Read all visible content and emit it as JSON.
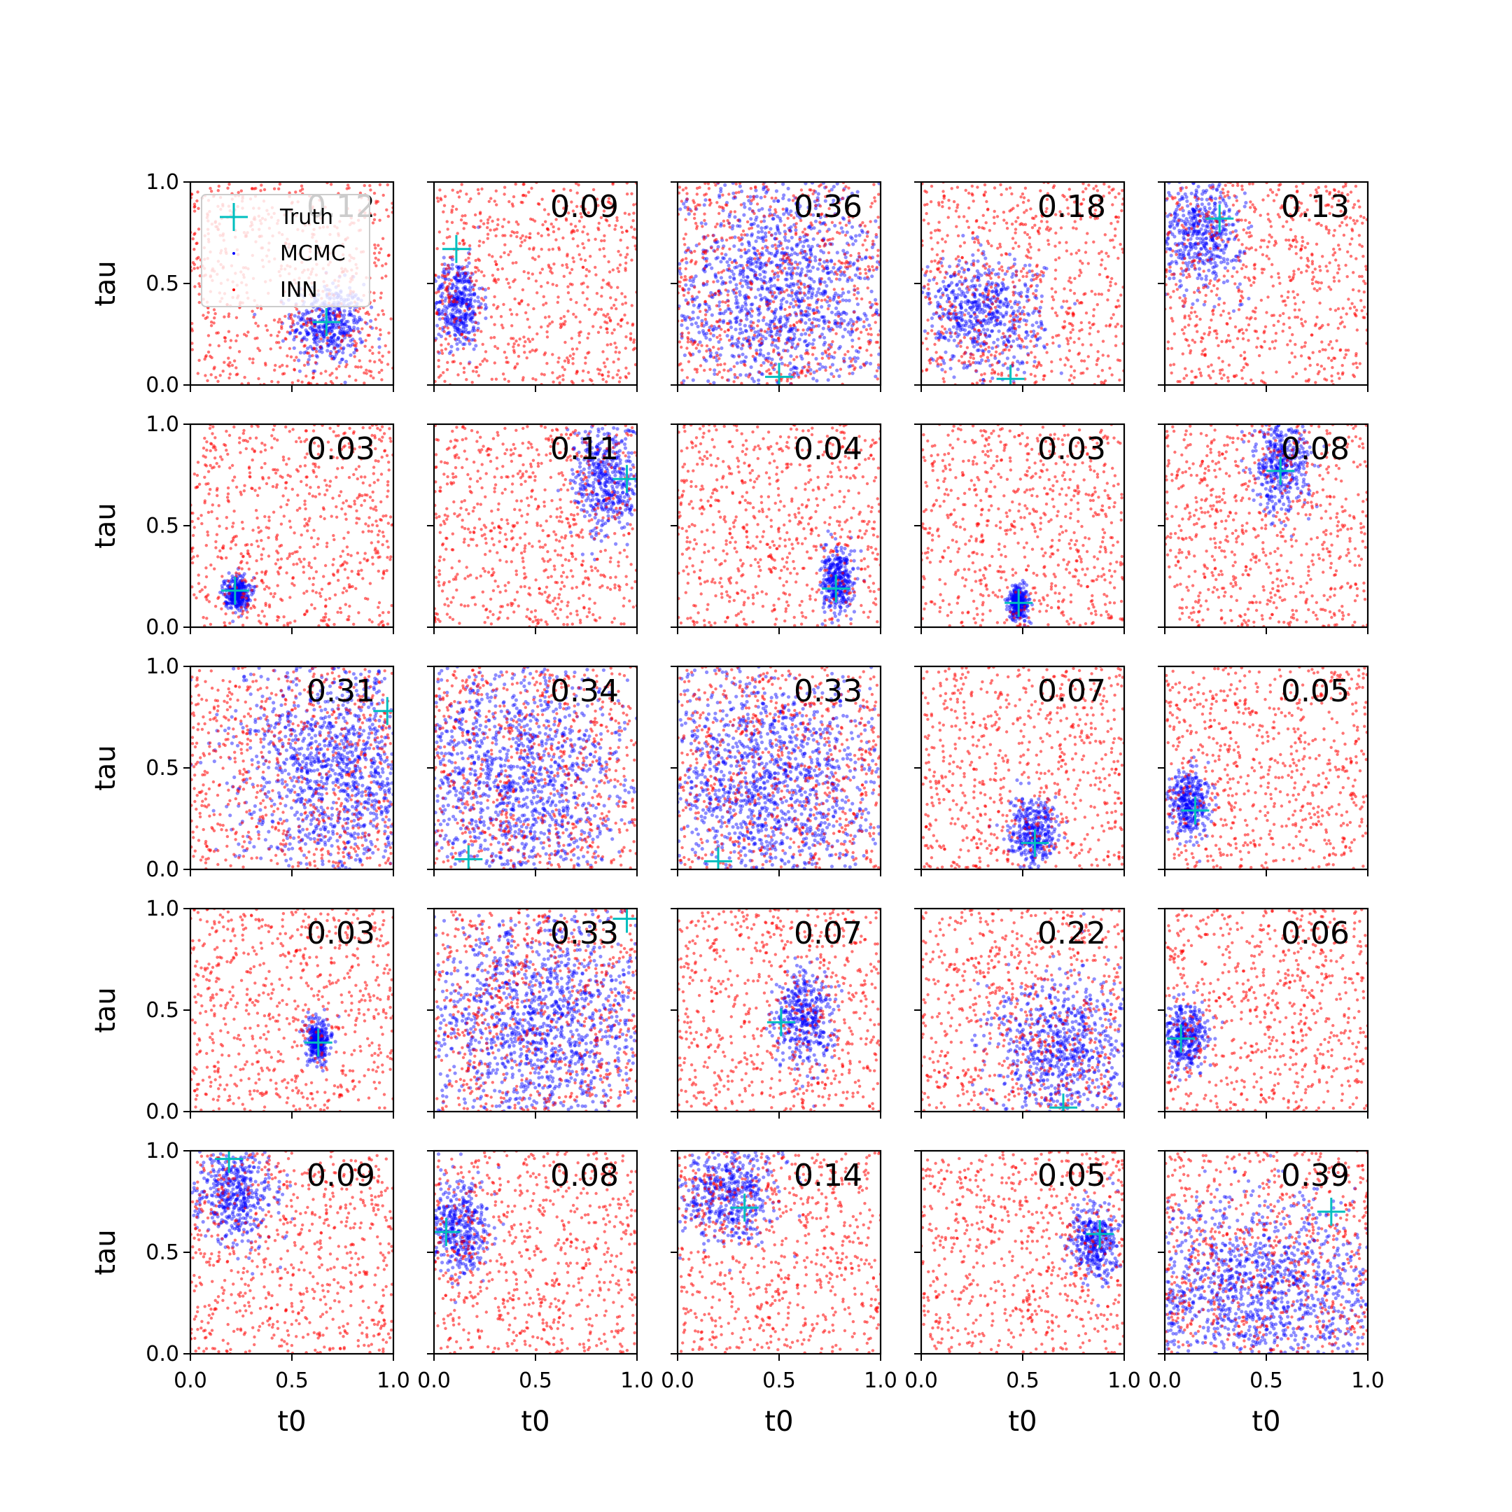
{
  "colors": {
    "truth": "#00bfbf",
    "mcmc": "#0000ff",
    "inn": "#ff0000",
    "axes": "#000000"
  },
  "legend": {
    "entries": [
      {
        "label": "Truth",
        "marker": "plus",
        "color": "#00bfbf"
      },
      {
        "label": "MCMC",
        "marker": "dot",
        "color": "#0000ff"
      },
      {
        "label": "INN",
        "marker": "dot",
        "color": "#ff0000"
      }
    ],
    "placement": "upper-left of first panel"
  },
  "chart_data": {
    "type": "scatter",
    "layout": "5x5 grid",
    "xlabel": "t0",
    "ylabel": "tau",
    "xlim": [
      0.0,
      1.0
    ],
    "ylim": [
      0.0,
      1.0
    ],
    "xticks": [
      "0.0",
      "0.5",
      "1.0"
    ],
    "yticks": [
      "0.0",
      "0.5",
      "1.0"
    ],
    "grid": false,
    "series_names": [
      "Truth",
      "MCMC",
      "INN"
    ],
    "panels": [
      {
        "row": 0,
        "col": 0,
        "value": "0.12",
        "truth": [
          0.67,
          0.31
        ],
        "mcmc": {
          "center": [
            0.68,
            0.3
          ],
          "spread": [
            0.09,
            0.1
          ]
        }
      },
      {
        "row": 0,
        "col": 1,
        "value": "0.09",
        "truth": [
          0.11,
          0.67
        ],
        "mcmc": {
          "center": [
            0.12,
            0.4
          ],
          "spread": [
            0.06,
            0.11
          ]
        }
      },
      {
        "row": 0,
        "col": 2,
        "value": "0.36",
        "truth": [
          0.5,
          0.04
        ],
        "mcmc": {
          "center": [
            0.5,
            0.45
          ],
          "spread": [
            0.3,
            0.3
          ]
        }
      },
      {
        "row": 0,
        "col": 3,
        "value": "0.18",
        "truth": [
          0.44,
          0.03
        ],
        "mcmc": {
          "center": [
            0.3,
            0.35
          ],
          "spread": [
            0.15,
            0.14
          ]
        }
      },
      {
        "row": 0,
        "col": 4,
        "value": "0.13",
        "truth": [
          0.27,
          0.82
        ],
        "mcmc": {
          "center": [
            0.18,
            0.75
          ],
          "spread": [
            0.1,
            0.13
          ]
        }
      },
      {
        "row": 1,
        "col": 0,
        "value": "0.03",
        "truth": [
          0.22,
          0.18
        ],
        "mcmc": {
          "center": [
            0.23,
            0.17
          ],
          "spread": [
            0.03,
            0.04
          ]
        }
      },
      {
        "row": 1,
        "col": 1,
        "value": "0.11",
        "truth": [
          0.95,
          0.73
        ],
        "mcmc": {
          "center": [
            0.85,
            0.72
          ],
          "spread": [
            0.08,
            0.14
          ]
        }
      },
      {
        "row": 1,
        "col": 2,
        "value": "0.04",
        "truth": [
          0.78,
          0.19
        ],
        "mcmc": {
          "center": [
            0.79,
            0.22
          ],
          "spread": [
            0.04,
            0.08
          ]
        }
      },
      {
        "row": 1,
        "col": 3,
        "value": "0.03",
        "truth": [
          0.48,
          0.12
        ],
        "mcmc": {
          "center": [
            0.48,
            0.12
          ],
          "spread": [
            0.025,
            0.04
          ]
        }
      },
      {
        "row": 1,
        "col": 4,
        "value": "0.08",
        "truth": [
          0.57,
          0.77
        ],
        "mcmc": {
          "center": [
            0.57,
            0.8
          ],
          "spread": [
            0.07,
            0.12
          ]
        }
      },
      {
        "row": 2,
        "col": 0,
        "value": "0.31",
        "truth": [
          0.97,
          0.78
        ],
        "mcmc": {
          "center": [
            0.75,
            0.5
          ],
          "spread": [
            0.25,
            0.3
          ]
        }
      },
      {
        "row": 2,
        "col": 1,
        "value": "0.34",
        "truth": [
          0.17,
          0.05
        ],
        "mcmc": {
          "center": [
            0.4,
            0.45
          ],
          "spread": [
            0.3,
            0.3
          ]
        }
      },
      {
        "row": 2,
        "col": 2,
        "value": "0.33",
        "truth": [
          0.2,
          0.04
        ],
        "mcmc": {
          "center": [
            0.45,
            0.4
          ],
          "spread": [
            0.3,
            0.3
          ]
        }
      },
      {
        "row": 2,
        "col": 3,
        "value": "0.07",
        "truth": [
          0.56,
          0.13
        ],
        "mcmc": {
          "center": [
            0.55,
            0.18
          ],
          "spread": [
            0.06,
            0.08
          ]
        }
      },
      {
        "row": 2,
        "col": 4,
        "value": "0.05",
        "truth": [
          0.15,
          0.29
        ],
        "mcmc": {
          "center": [
            0.12,
            0.33
          ],
          "spread": [
            0.05,
            0.08
          ]
        }
      },
      {
        "row": 3,
        "col": 0,
        "value": "0.03",
        "truth": [
          0.63,
          0.34
        ],
        "mcmc": {
          "center": [
            0.63,
            0.35
          ],
          "spread": [
            0.03,
            0.05
          ]
        }
      },
      {
        "row": 3,
        "col": 1,
        "value": "0.33",
        "truth": [
          0.95,
          0.95
        ],
        "mcmc": {
          "center": [
            0.5,
            0.45
          ],
          "spread": [
            0.3,
            0.3
          ]
        }
      },
      {
        "row": 3,
        "col": 2,
        "value": "0.07",
        "truth": [
          0.51,
          0.44
        ],
        "mcmc": {
          "center": [
            0.62,
            0.45
          ],
          "spread": [
            0.07,
            0.12
          ]
        }
      },
      {
        "row": 3,
        "col": 3,
        "value": "0.22",
        "truth": [
          0.7,
          0.02
        ],
        "mcmc": {
          "center": [
            0.7,
            0.3
          ],
          "spread": [
            0.18,
            0.18
          ]
        }
      },
      {
        "row": 3,
        "col": 4,
        "value": "0.06",
        "truth": [
          0.08,
          0.36
        ],
        "mcmc": {
          "center": [
            0.1,
            0.37
          ],
          "spread": [
            0.05,
            0.08
          ]
        }
      },
      {
        "row": 4,
        "col": 0,
        "value": "0.09",
        "truth": [
          0.19,
          0.96
        ],
        "mcmc": {
          "center": [
            0.22,
            0.8
          ],
          "spread": [
            0.1,
            0.13
          ]
        }
      },
      {
        "row": 4,
        "col": 1,
        "value": "0.08",
        "truth": [
          0.06,
          0.6
        ],
        "mcmc": {
          "center": [
            0.12,
            0.62
          ],
          "spread": [
            0.07,
            0.12
          ]
        }
      },
      {
        "row": 4,
        "col": 2,
        "value": "0.14",
        "truth": [
          0.33,
          0.72
        ],
        "mcmc": {
          "center": [
            0.25,
            0.8
          ],
          "spread": [
            0.12,
            0.13
          ]
        }
      },
      {
        "row": 4,
        "col": 3,
        "value": "0.05",
        "truth": [
          0.88,
          0.59
        ],
        "mcmc": {
          "center": [
            0.86,
            0.55
          ],
          "spread": [
            0.06,
            0.09
          ]
        }
      },
      {
        "row": 4,
        "col": 4,
        "value": "0.39",
        "truth": [
          0.82,
          0.7
        ],
        "mcmc": {
          "center": [
            0.45,
            0.3
          ],
          "spread": [
            0.35,
            0.22
          ]
        }
      }
    ]
  }
}
